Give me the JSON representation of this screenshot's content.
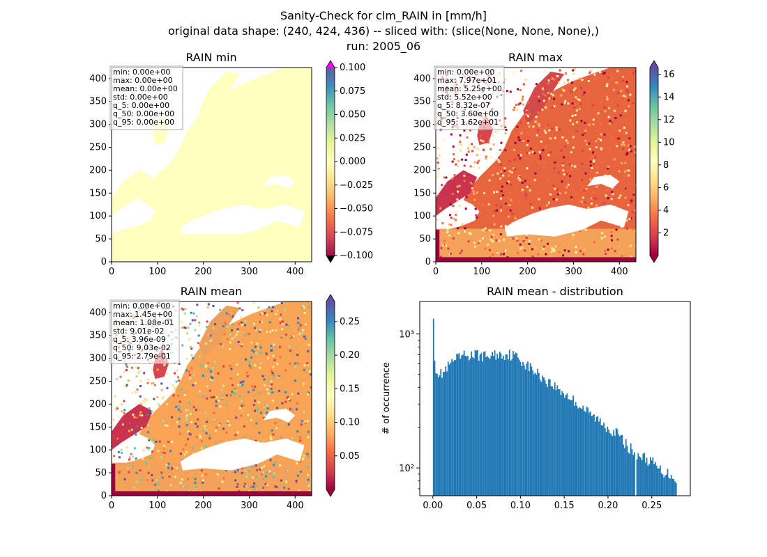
{
  "figure": {
    "title_lines": [
      "Sanity-Check for clm_RAIN in [mm/h]",
      "original data shape: (240, 424, 436) -- sliced with: (slice(None, None, None),)",
      "run: 2005_06"
    ]
  },
  "colors": {
    "spectral": [
      "#9e0142",
      "#d53e4f",
      "#f46d43",
      "#fdae61",
      "#fee08b",
      "#ffffbf",
      "#e6f598",
      "#abdda4",
      "#66c2a5",
      "#3288bd",
      "#5e4fa2"
    ],
    "over_min": "#ff00ff",
    "under_min": "#000000",
    "hist_bar": "#1f77b4",
    "axis": "#000000",
    "stats_box_border": "#aaaaaa"
  },
  "chart_data": [
    {
      "id": "rain_min",
      "type": "heatmap",
      "title": "RAIN min",
      "xlim": [
        0,
        436
      ],
      "ylim": [
        0,
        424
      ],
      "xticks": [
        0,
        100,
        200,
        300,
        400
      ],
      "yticks": [
        0,
        50,
        100,
        150,
        200,
        250,
        300,
        350,
        400
      ],
      "field": "constant zero over land (lightyellow); ocean masked (white)",
      "stats": [
        "min: 0.00e+00",
        "max: 0.00e+00",
        "mean: 0.00e+00",
        "std: 0.00e+00",
        "q_5: 0.00e+00",
        "q_50: 0.00e+00",
        "q_95: 0.00e+00"
      ],
      "colorbar": {
        "range": [
          -0.1,
          0.1
        ],
        "ticks": [
          "0.100",
          "0.075",
          "0.050",
          "0.025",
          "0.000",
          "−0.025",
          "−0.050",
          "−0.075",
          "−0.100"
        ],
        "extend": "both"
      }
    },
    {
      "id": "rain_max",
      "type": "heatmap",
      "title": "RAIN max",
      "xlim": [
        0,
        436
      ],
      "ylim": [
        0,
        424
      ],
      "xticks": [
        0,
        100,
        200,
        300,
        400
      ],
      "yticks": [
        0,
        50,
        100,
        150,
        200,
        250,
        300,
        350,
        400
      ],
      "stats": [
        "min: 0.00e+00",
        "max: 7.97e+01",
        "mean: 5.25e+00",
        "std: 5.52e+00",
        "q_5: 8.32e-07",
        "q_50: 3.60e+00",
        "q_95: 1.62e+01"
      ],
      "colorbar": {
        "range": [
          0,
          16.6
        ],
        "ticks": [
          "16",
          "14",
          "12",
          "10",
          "8",
          "6",
          "4",
          "2"
        ],
        "extend": "both"
      }
    },
    {
      "id": "rain_mean",
      "type": "heatmap",
      "title": "RAIN mean",
      "xlim": [
        0,
        436
      ],
      "ylim": [
        0,
        424
      ],
      "xticks": [
        0,
        100,
        200,
        300,
        400
      ],
      "yticks": [
        0,
        50,
        100,
        150,
        200,
        250,
        300,
        350,
        400
      ],
      "stats": [
        "min: 0.00e+00",
        "max: 1.45e+00",
        "mean: 1.08e-01",
        "std: 9.01e-02",
        "q_5: 3.96e-09",
        "q_50: 9.03e-02",
        "q_95: 2.79e-01"
      ],
      "colorbar": {
        "range": [
          0,
          0.28
        ],
        "ticks": [
          "0.25",
          "0.20",
          "0.15",
          "0.10",
          "0.05"
        ],
        "extend": "both"
      }
    },
    {
      "id": "rain_mean_distribution",
      "type": "bar",
      "title": "RAIN mean - distribution",
      "ylabel": "# of occurrence",
      "yscale": "log",
      "xlim": [
        -0.015,
        0.294
      ],
      "ylim": [
        62,
        1750
      ],
      "xticks": [
        0.0,
        0.05,
        0.1,
        0.15,
        0.2,
        0.25
      ],
      "xtick_labels": [
        "0.00",
        "0.05",
        "0.10",
        "0.15",
        "0.20",
        "0.25"
      ],
      "yticks": [
        100,
        1000
      ],
      "ytick_labels": [
        "10²",
        "10³"
      ],
      "bin_width": 0.0014,
      "profile": [
        [
          0.0,
          1300
        ],
        [
          0.0015,
          600
        ],
        [
          0.003,
          560
        ],
        [
          0.005,
          520
        ],
        [
          0.008,
          500
        ],
        [
          0.012,
          520
        ],
        [
          0.018,
          580
        ],
        [
          0.025,
          640
        ],
        [
          0.035,
          690
        ],
        [
          0.05,
          700
        ],
        [
          0.06,
          680
        ],
        [
          0.07,
          700
        ],
        [
          0.085,
          710
        ],
        [
          0.095,
          680
        ],
        [
          0.105,
          600
        ],
        [
          0.12,
          500
        ],
        [
          0.14,
          400
        ],
        [
          0.16,
          320
        ],
        [
          0.18,
          250
        ],
        [
          0.2,
          200
        ],
        [
          0.21,
          180
        ],
        [
          0.22,
          150
        ],
        [
          0.23,
          130
        ],
        [
          0.24,
          120
        ],
        [
          0.25,
          110
        ],
        [
          0.26,
          95
        ],
        [
          0.27,
          90
        ],
        [
          0.276,
          85
        ],
        [
          0.2785,
          78
        ]
      ],
      "gaps": [
        0.231
      ]
    }
  ]
}
